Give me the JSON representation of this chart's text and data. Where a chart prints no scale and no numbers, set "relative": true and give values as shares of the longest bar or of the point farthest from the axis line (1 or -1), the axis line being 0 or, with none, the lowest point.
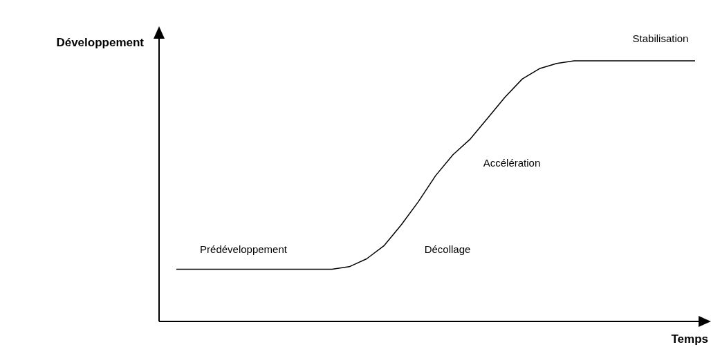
{
  "chart_data": {
    "type": "line",
    "relative": true,
    "xlabel": "Temps",
    "ylabel": "Développement",
    "categories": [
      null,
      null,
      null,
      null,
      null,
      null,
      null,
      null,
      null,
      null,
      null,
      null,
      null,
      null,
      null,
      null,
      null,
      null,
      null,
      null,
      null,
      null,
      null,
      null,
      null,
      null,
      null,
      null,
      null,
      null,
      null,
      null
    ],
    "values": [
      null,
      0.2,
      0.2,
      0.2,
      0.2,
      0.2,
      0.2,
      0.2,
      0.2,
      0.2,
      0.2,
      0.21,
      0.24,
      0.29,
      0.37,
      0.46,
      0.56,
      0.64,
      0.7,
      0.78,
      0.86,
      0.93,
      0.97,
      0.99,
      1,
      1,
      1,
      1,
      1,
      1,
      1,
      1
    ],
    "color": "#000000",
    "marker": "none",
    "legend": false,
    "annotations": [
      "Stabilisation",
      "Accélération",
      "Décollage",
      "Prédéveloppement"
    ]
  }
}
